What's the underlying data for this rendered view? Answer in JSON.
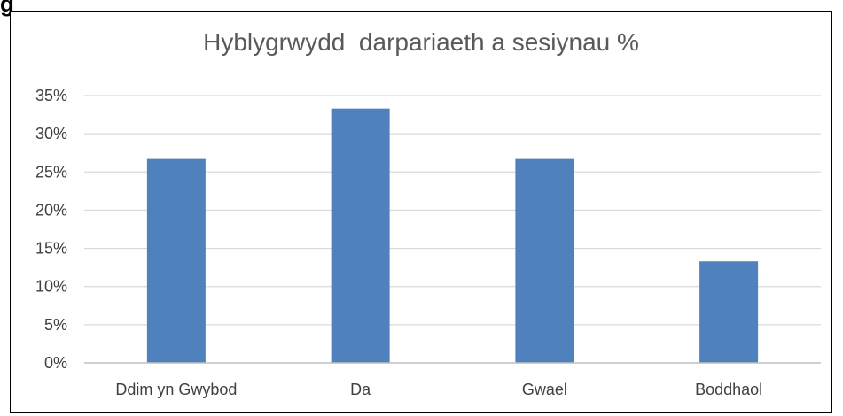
{
  "fragment_text": "g",
  "chart_data": {
    "type": "bar",
    "title": "Hyblygrwydd  darpariaeth a sesiynau %",
    "xlabel": "",
    "ylabel": "",
    "categories": [
      "Ddim yn Gwybod",
      "Da",
      "Gwael",
      "Boddhaol"
    ],
    "values": [
      26.7,
      33.3,
      26.7,
      13.3
    ],
    "ylim": [
      0,
      35
    ],
    "yticks": [
      0,
      5,
      10,
      15,
      20,
      25,
      30,
      35
    ],
    "ytick_labels": [
      "0%",
      "5%",
      "10%",
      "15%",
      "20%",
      "25%",
      "30%",
      "35%"
    ],
    "grid": true,
    "legend": "none",
    "bar_color": "#4f81bd",
    "grid_color": "#d9d9d9",
    "axis_color": "#bfbfbf"
  }
}
